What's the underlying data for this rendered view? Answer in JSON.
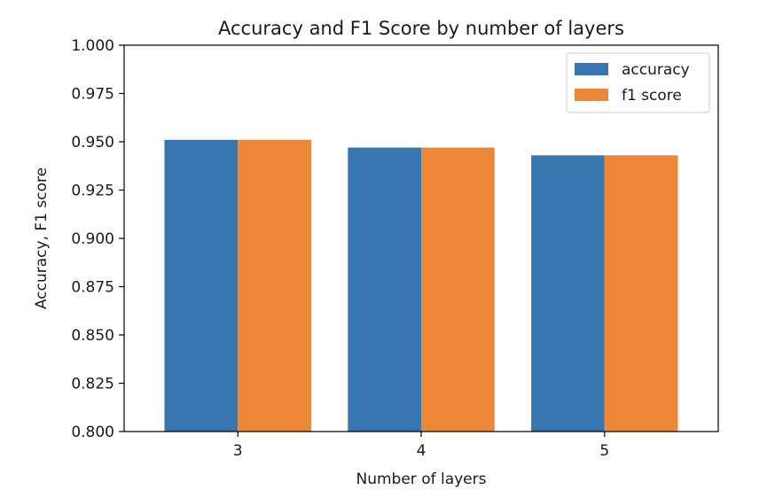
{
  "chart_data": {
    "type": "bar",
    "title": "Accuracy and F1 Score by number of layers",
    "xlabel": "Number of layers",
    "ylabel": "Accuracy, F1 score",
    "categories": [
      "3",
      "4",
      "5"
    ],
    "series": [
      {
        "name": "accuracy",
        "values": [
          0.951,
          0.947,
          0.943
        ],
        "color": "#3776ae"
      },
      {
        "name": "f1 score",
        "values": [
          0.951,
          0.947,
          0.943
        ],
        "color": "#ee8637"
      }
    ],
    "ylim": [
      0.8,
      1.0
    ],
    "yticks": [
      "0.800",
      "0.825",
      "0.850",
      "0.875",
      "0.900",
      "0.925",
      "0.950",
      "0.975",
      "1.000"
    ],
    "grid": false,
    "legend_position": "top-right"
  }
}
